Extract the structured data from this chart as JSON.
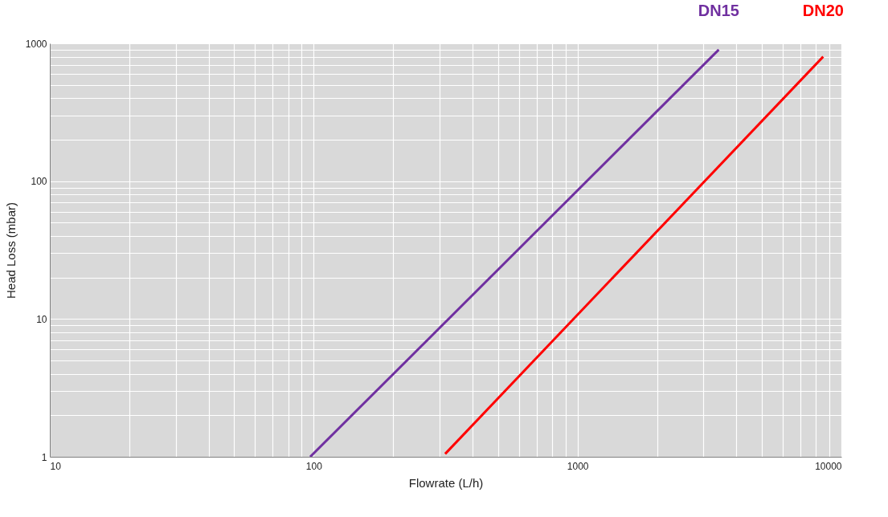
{
  "chart_data": {
    "type": "line",
    "xlabel": "Flowrate (L/h)",
    "ylabel": "Head Loss (mbar)",
    "log": "xy",
    "grid": true,
    "legend": false,
    "marker": "none",
    "line_style": "solid",
    "xlim": [
      10,
      10000
    ],
    "ylim": [
      1,
      1000
    ],
    "xticks": [
      10,
      {
        "value": 20,
        "label": null
      },
      {
        "value": 30,
        "label": null
      },
      {
        "value": 40,
        "label": null
      },
      {
        "value": 50,
        "label": null
      },
      {
        "value": 60,
        "label": null
      },
      {
        "value": 70,
        "label": null
      },
      {
        "value": 80,
        "label": null
      },
      {
        "value": 90,
        "label": null
      },
      100,
      {
        "value": 200,
        "label": null
      },
      {
        "value": 300,
        "label": null
      },
      {
        "value": 400,
        "label": null
      },
      {
        "value": 500,
        "label": null
      },
      {
        "value": 600,
        "label": null
      },
      {
        "value": 700,
        "label": null
      },
      {
        "value": 800,
        "label": null
      },
      {
        "value": 900,
        "label": null
      },
      1000,
      {
        "value": 2000,
        "label": null
      },
      {
        "value": 3000,
        "label": null
      },
      {
        "value": 4000,
        "label": null
      },
      {
        "value": 5000,
        "label": null
      },
      {
        "value": 6000,
        "label": null
      },
      {
        "value": 7000,
        "label": null
      },
      {
        "value": 8000,
        "label": null
      },
      {
        "value": 9000,
        "label": null
      },
      10000
    ],
    "yticks": [
      1,
      {
        "value": 2,
        "label": null
      },
      {
        "value": 3,
        "label": null
      },
      {
        "value": 4,
        "label": null
      },
      {
        "value": 5,
        "label": null
      },
      {
        "value": 6,
        "label": null
      },
      {
        "value": 7,
        "label": null
      },
      {
        "value": 8,
        "label": null
      },
      {
        "value": 9,
        "label": null
      },
      10,
      {
        "value": 20,
        "label": null
      },
      {
        "value": 30,
        "label": null
      },
      {
        "value": 40,
        "label": null
      },
      {
        "value": 50,
        "label": null
      },
      {
        "value": 60,
        "label": null
      },
      {
        "value": 70,
        "label": null
      },
      {
        "value": 80,
        "label": null
      },
      {
        "value": 90,
        "label": null
      },
      100,
      {
        "value": 200,
        "label": null
      },
      {
        "value": 300,
        "label": null
      },
      {
        "value": 400,
        "label": null
      },
      {
        "value": 500,
        "label": null
      },
      {
        "value": 600,
        "label": null
      },
      {
        "value": 700,
        "label": null
      },
      {
        "value": 800,
        "label": null
      },
      {
        "value": 900,
        "label": null
      },
      1000
    ],
    "series": [
      {
        "name": "DN15",
        "color": "#7030a0",
        "x": [
          97,
          3430
        ],
        "values": [
          1,
          900
        ]
      },
      {
        "name": "DN20",
        "color": "#ff0000",
        "x": [
          315,
          8530
        ],
        "values": [
          1.05,
          800
        ]
      }
    ]
  }
}
